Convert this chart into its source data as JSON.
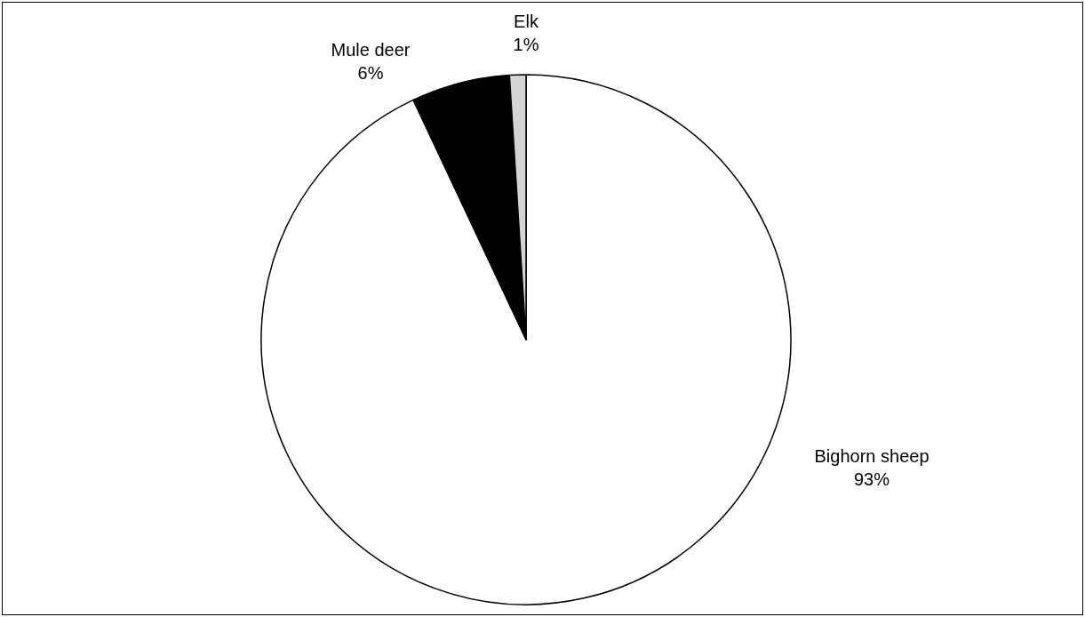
{
  "chart_data": {
    "type": "pie",
    "categories": [
      "Bighorn sheep",
      "Mule deer",
      "Elk"
    ],
    "values": [
      93,
      6,
      1
    ],
    "colors": [
      "#ffffff",
      "#000000",
      "#d4d4d4"
    ],
    "value_labels": [
      "93%",
      "6%",
      "1%"
    ]
  }
}
